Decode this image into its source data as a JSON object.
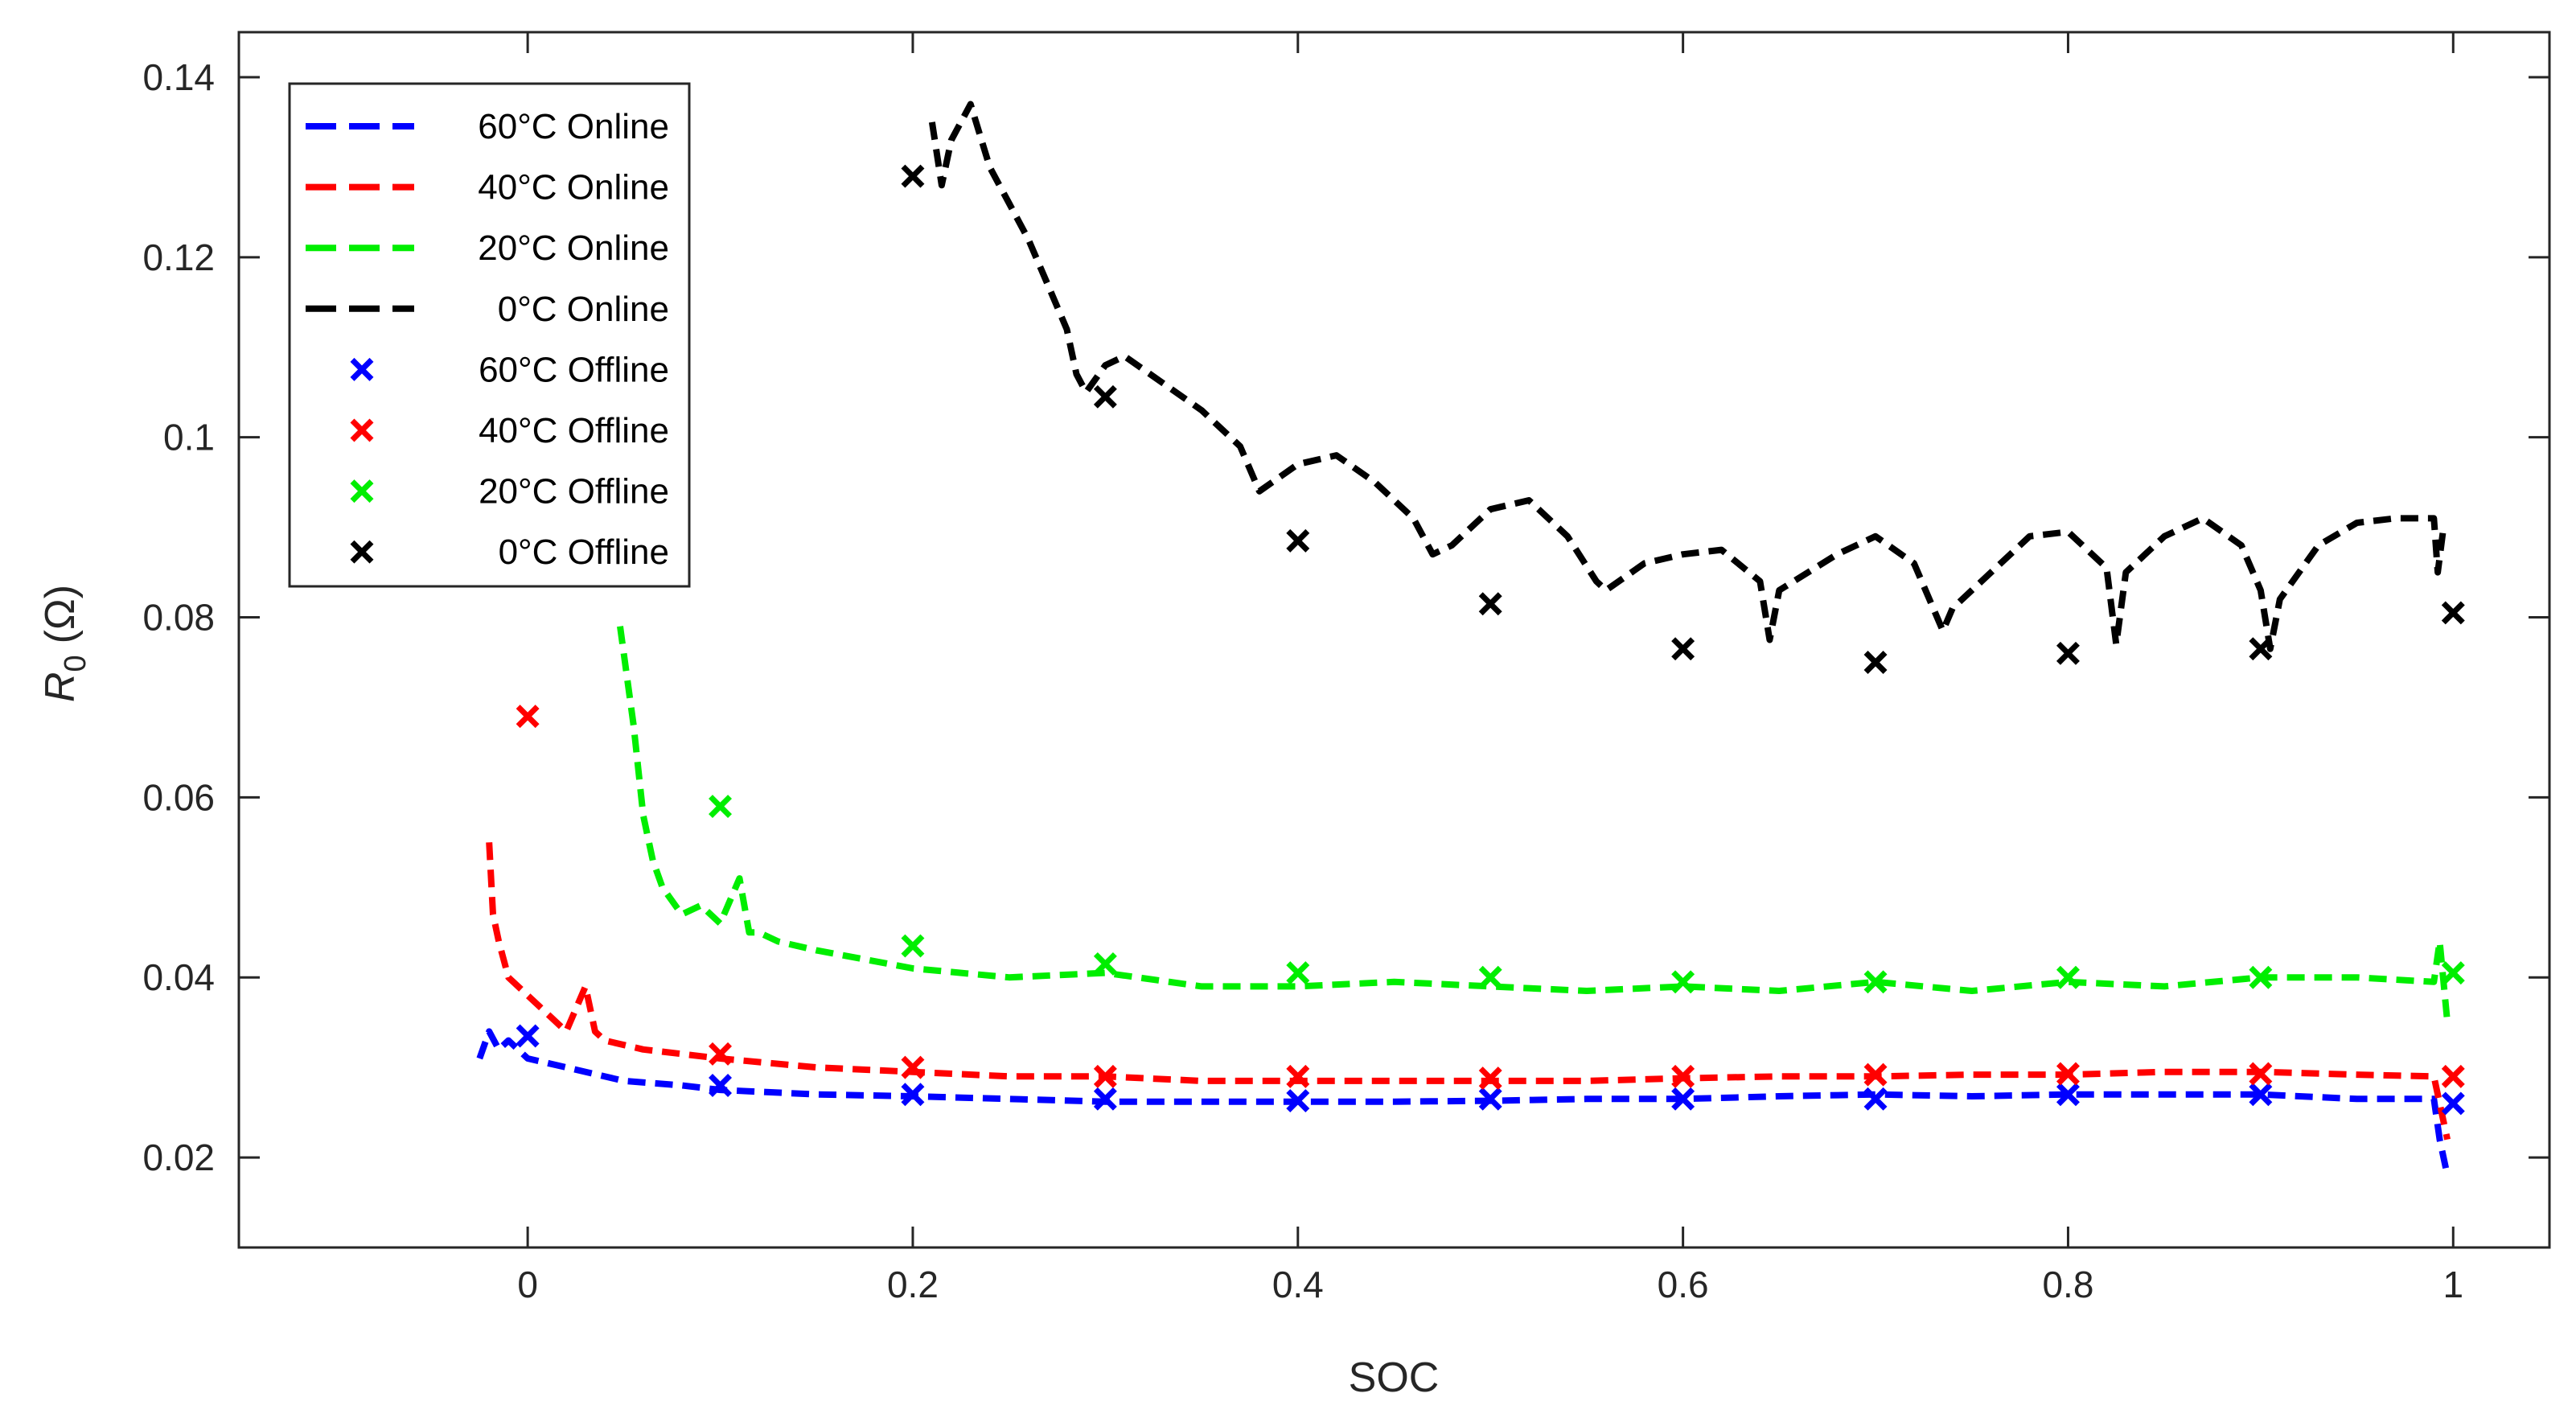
{
  "chart_data": {
    "type": "line",
    "title": "",
    "xlabel": "SOC",
    "ylabel": {
      "symbol": "R",
      "subscript": "0",
      "unit": "(Ω)"
    },
    "xlim": [
      -0.15,
      1.05
    ],
    "ylim": [
      0.01,
      0.145
    ],
    "xticks": [
      0,
      0.2,
      0.4,
      0.6,
      0.8,
      1
    ],
    "xtick_labels": [
      "0",
      "0.2",
      "0.4",
      "0.6",
      "0.8",
      "1"
    ],
    "yticks": [
      0.02,
      0.04,
      0.06,
      0.08,
      0.1,
      0.12,
      0.14
    ],
    "ytick_labels": [
      "0.02",
      "0.04",
      "0.06",
      "0.08",
      "0.1",
      "0.12",
      "0.14"
    ],
    "legend_position": "top-left",
    "colors": {
      "60C": "#0000ff",
      "40C": "#ff0000",
      "20C": "#00ee00",
      "0C": "#000000"
    },
    "series": [
      {
        "name": "60°C Online",
        "style": "dashed",
        "color": "#0000ff",
        "x": [
          -0.025,
          -0.02,
          -0.015,
          -0.01,
          0,
          0.02,
          0.05,
          0.08,
          0.1,
          0.15,
          0.2,
          0.25,
          0.3,
          0.35,
          0.4,
          0.45,
          0.5,
          0.55,
          0.6,
          0.65,
          0.7,
          0.75,
          0.8,
          0.85,
          0.9,
          0.95,
          0.99,
          0.993,
          0.997
        ],
        "y": [
          0.031,
          0.034,
          0.032,
          0.033,
          0.031,
          0.03,
          0.0285,
          0.028,
          0.0275,
          0.027,
          0.0268,
          0.0265,
          0.0262,
          0.0262,
          0.0262,
          0.0262,
          0.0263,
          0.0265,
          0.0265,
          0.0268,
          0.027,
          0.0268,
          0.027,
          0.027,
          0.027,
          0.0265,
          0.0265,
          0.022,
          0.018
        ]
      },
      {
        "name": "40°C Online",
        "style": "dashed",
        "color": "#ff0000",
        "x": [
          -0.02,
          -0.018,
          -0.015,
          -0.01,
          -0.005,
          0,
          0.01,
          0.02,
          0.03,
          0.035,
          0.04,
          0.06,
          0.1,
          0.15,
          0.2,
          0.25,
          0.3,
          0.35,
          0.4,
          0.45,
          0.5,
          0.55,
          0.6,
          0.65,
          0.7,
          0.75,
          0.8,
          0.85,
          0.9,
          0.95,
          0.99,
          0.993,
          0.997
        ],
        "y": [
          0.055,
          0.047,
          0.044,
          0.04,
          0.039,
          0.038,
          0.036,
          0.034,
          0.039,
          0.034,
          0.033,
          0.032,
          0.031,
          0.03,
          0.0295,
          0.029,
          0.029,
          0.0285,
          0.0285,
          0.0285,
          0.0285,
          0.0285,
          0.0288,
          0.029,
          0.029,
          0.0292,
          0.0292,
          0.0295,
          0.0295,
          0.0292,
          0.029,
          0.026,
          0.022
        ]
      },
      {
        "name": "20°C Online",
        "style": "dashed",
        "color": "#00ee00",
        "x": [
          0.048,
          0.055,
          0.06,
          0.065,
          0.07,
          0.08,
          0.09,
          0.1,
          0.11,
          0.115,
          0.12,
          0.13,
          0.15,
          0.2,
          0.25,
          0.3,
          0.35,
          0.4,
          0.45,
          0.5,
          0.55,
          0.6,
          0.65,
          0.7,
          0.75,
          0.8,
          0.85,
          0.9,
          0.95,
          0.99,
          0.993,
          0.997
        ],
        "y": [
          0.079,
          0.068,
          0.058,
          0.053,
          0.05,
          0.047,
          0.048,
          0.046,
          0.051,
          0.045,
          0.045,
          0.044,
          0.043,
          0.041,
          0.04,
          0.0405,
          0.039,
          0.039,
          0.0395,
          0.039,
          0.0385,
          0.039,
          0.0385,
          0.0395,
          0.0385,
          0.0395,
          0.039,
          0.04,
          0.04,
          0.0395,
          0.044,
          0.035
        ]
      },
      {
        "name": "0°C Online",
        "style": "dashed",
        "color": "#000000",
        "x": [
          0.21,
          0.215,
          0.22,
          0.225,
          0.23,
          0.24,
          0.25,
          0.26,
          0.27,
          0.28,
          0.285,
          0.29,
          0.3,
          0.31,
          0.33,
          0.35,
          0.37,
          0.38,
          0.4,
          0.42,
          0.44,
          0.46,
          0.47,
          0.48,
          0.5,
          0.52,
          0.54,
          0.555,
          0.56,
          0.58,
          0.6,
          0.62,
          0.64,
          0.645,
          0.65,
          0.68,
          0.7,
          0.72,
          0.735,
          0.74,
          0.76,
          0.78,
          0.8,
          0.82,
          0.825,
          0.83,
          0.85,
          0.87,
          0.89,
          0.9,
          0.905,
          0.91,
          0.93,
          0.95,
          0.97,
          0.99,
          0.992,
          0.995
        ],
        "y": [
          0.135,
          0.128,
          0.133,
          0.135,
          0.137,
          0.13,
          0.126,
          0.122,
          0.117,
          0.112,
          0.107,
          0.105,
          0.108,
          0.109,
          0.106,
          0.103,
          0.099,
          0.094,
          0.097,
          0.098,
          0.095,
          0.091,
          0.087,
          0.088,
          0.092,
          0.093,
          0.089,
          0.084,
          0.083,
          0.086,
          0.087,
          0.0875,
          0.084,
          0.0775,
          0.083,
          0.087,
          0.089,
          0.086,
          0.0785,
          0.081,
          0.085,
          0.089,
          0.0895,
          0.0855,
          0.077,
          0.085,
          0.089,
          0.091,
          0.088,
          0.083,
          0.0765,
          0.082,
          0.088,
          0.0905,
          0.091,
          0.091,
          0.085,
          0.09
        ]
      },
      {
        "name": "60°C Offline",
        "style": "marker",
        "color": "#0000ff",
        "x": [
          0,
          0.1,
          0.2,
          0.3,
          0.4,
          0.5,
          0.6,
          0.7,
          0.8,
          0.9,
          1
        ],
        "y": [
          0.0335,
          0.028,
          0.027,
          0.0265,
          0.0263,
          0.0265,
          0.0265,
          0.0265,
          0.027,
          0.027,
          0.026
        ]
      },
      {
        "name": "40°C Offline",
        "style": "marker",
        "color": "#ff0000",
        "x": [
          0,
          0.1,
          0.2,
          0.3,
          0.4,
          0.5,
          0.6,
          0.7,
          0.8,
          0.9,
          1
        ],
        "y": [
          0.069,
          0.0315,
          0.03,
          0.029,
          0.029,
          0.0288,
          0.029,
          0.0292,
          0.0293,
          0.0293,
          0.029
        ]
      },
      {
        "name": "20°C Offline",
        "style": "marker",
        "color": "#00ee00",
        "x": [
          0.1,
          0.2,
          0.3,
          0.4,
          0.5,
          0.6,
          0.7,
          0.8,
          0.9,
          1
        ],
        "y": [
          0.059,
          0.0435,
          0.0415,
          0.0405,
          0.04,
          0.0395,
          0.0395,
          0.04,
          0.04,
          0.0405
        ]
      },
      {
        "name": "0°C Offline",
        "style": "marker",
        "color": "#000000",
        "x": [
          0.2,
          0.3,
          0.4,
          0.5,
          0.6,
          0.7,
          0.8,
          0.9,
          1
        ],
        "y": [
          0.129,
          0.1045,
          0.0885,
          0.0815,
          0.0765,
          0.075,
          0.076,
          0.0765,
          0.0805
        ]
      }
    ]
  }
}
